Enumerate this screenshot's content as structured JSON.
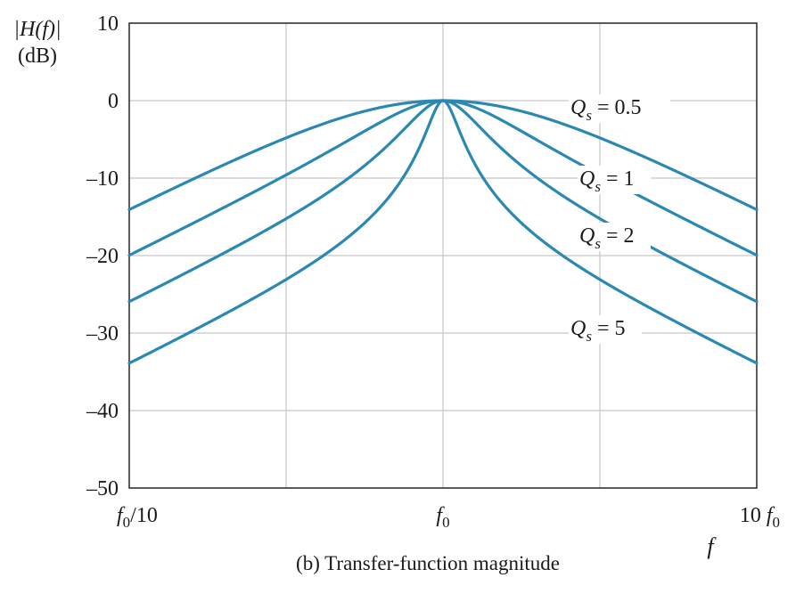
{
  "chart_data": {
    "type": "line",
    "ylabel_line1": "|H(f)|",
    "ylabel_line2": "(dB)",
    "xlabel": "f",
    "caption": "(b) Transfer-function magnitude",
    "x_scale": "log",
    "xlim": [
      "f0/10",
      "10 f0"
    ],
    "ylim": [
      -50,
      10
    ],
    "y_ticks": [
      10,
      0,
      -10,
      -20,
      -30,
      -40,
      -50
    ],
    "y_tick_labels": [
      "10",
      "0",
      "–10",
      "–20",
      "–30",
      "–40",
      "–50"
    ],
    "x_ticks": [
      {
        "base": "f",
        "sub": "0",
        "suffix": "/10",
        "prefix": ""
      },
      {
        "base": "f",
        "sub": "0",
        "suffix": "",
        "prefix": ""
      },
      {
        "base": "f",
        "sub": "0",
        "suffix": "",
        "prefix": "10 "
      }
    ],
    "grid": true,
    "line_color": "#2a88b3",
    "series": [
      {
        "name": "Q_s = 0.5",
        "q": 0.5,
        "label_sub": "s",
        "label_value": " = 0.5"
      },
      {
        "name": "Q_s = 1",
        "q": 1,
        "label_sub": "s",
        "label_value": " = 1"
      },
      {
        "name": "Q_s = 2",
        "q": 2,
        "label_sub": "s",
        "label_value": " = 2"
      },
      {
        "name": "Q_s = 5",
        "q": 5,
        "label_sub": "s",
        "label_value": " = 5"
      }
    ]
  }
}
